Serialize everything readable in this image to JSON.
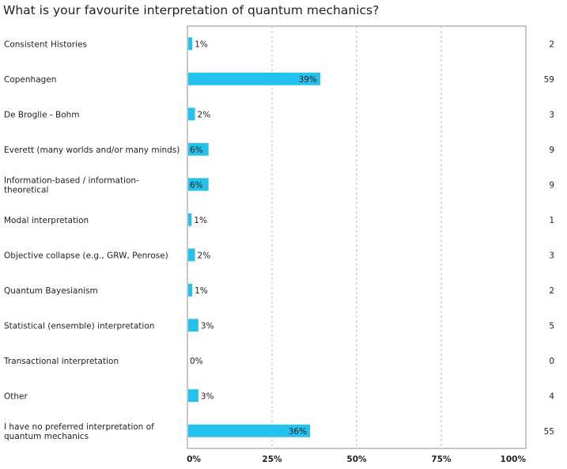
{
  "title": "What is your favourite interpretation of quantum mechanics?",
  "colors": {
    "bar": "#24c1ef",
    "grid": "#b8b8b8",
    "border": "#8f8f8f"
  },
  "chart_data": {
    "type": "bar",
    "orientation": "horizontal",
    "title": "What is your favourite interpretation of quantum mechanics?",
    "xlabel": "",
    "ylabel": "",
    "xlim": [
      0,
      100
    ],
    "grid": "vertical dashed",
    "xticks": [
      "0%",
      "25%",
      "50%",
      "75%",
      "100%"
    ],
    "categories": [
      [
        "Consistent Histories"
      ],
      [
        "Copenhagen"
      ],
      [
        "De Broglie - Bohm"
      ],
      [
        "Everett (many worlds and/or many minds)"
      ],
      [
        "Information-based / information-",
        "theoretical"
      ],
      [
        "Modal interpretation"
      ],
      [
        "Objective collapse (e.g., GRW, Penrose)"
      ],
      [
        "Quantum Bayesianism"
      ],
      [
        "Statistical (ensemble) interpretation"
      ],
      [
        "Transactional interpretation"
      ],
      [
        "Other"
      ],
      [
        "I have no preferred interpretation of",
        "quantum mechanics"
      ]
    ],
    "values": [
      1.2,
      39,
      2,
      6,
      6,
      1,
      2,
      1.2,
      3,
      0,
      3,
      36
    ],
    "labels": [
      "1%",
      "39%",
      "2%",
      "6%",
      "6%",
      "1%",
      "2%",
      "1%",
      "3%",
      "0%",
      "3%",
      "36%"
    ],
    "counts": [
      "2",
      "59",
      "3",
      "9",
      "9",
      "1",
      "3",
      "2",
      "5",
      "0",
      "4",
      "55"
    ]
  }
}
